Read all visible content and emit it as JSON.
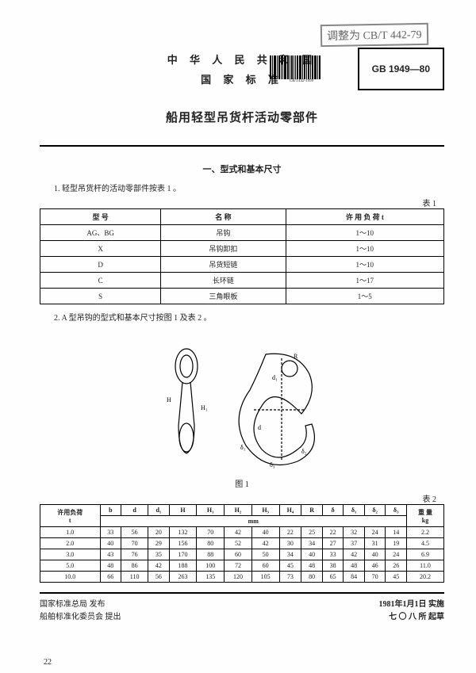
{
  "stamp": "调整为 CB/T 442-79",
  "header": {
    "country": "中 华 人 民 共 和 国",
    "std_label": "国 家 标 准",
    "barcode_sub": "CB/T442-1999",
    "gb_code": "GB 1949—80",
    "title": "船用轻型吊货杆活动零部件"
  },
  "section1": {
    "heading": "一、型式和基本尺寸",
    "item1": "1. 轻型吊货杆的活动零部件按表 1 。",
    "table_label": "表 1",
    "table1": {
      "headers": [
        "型    号",
        "名          称",
        "许 用 负 荷   t"
      ],
      "rows": [
        [
          "AG、BG",
          "吊钩",
          "1～10"
        ],
        [
          "X",
          "吊钩卸扣",
          "1～10"
        ],
        [
          "D",
          "吊货短链",
          "1～10"
        ],
        [
          "C",
          "长环链",
          "1～17"
        ],
        [
          "S",
          "三角眼板",
          "1～5"
        ]
      ]
    },
    "item2": "2. A 型吊钩的型式和基本尺寸按图 1 及表 2 。",
    "figure_caption": "图 1",
    "table2_label": "表 2",
    "table2": {
      "col_headers": [
        "许用负荷\nt",
        "b",
        "d",
        "d₁",
        "H",
        "H₁",
        "H₂",
        "H₃",
        "H₄",
        "R",
        "δ",
        "δ₁",
        "δ₂",
        "δ₃",
        "重 量\nkg"
      ],
      "unit_row": "mm",
      "rows": [
        [
          "1.0",
          "33",
          "56",
          "20",
          "132",
          "70",
          "42",
          "40",
          "22",
          "25",
          "22",
          "32",
          "24",
          "14",
          "2.2"
        ],
        [
          "2.0",
          "40",
          "70",
          "29",
          "156",
          "80",
          "52",
          "42",
          "30",
          "34",
          "27",
          "37",
          "31",
          "19",
          "4.5"
        ],
        [
          "3.0",
          "43",
          "76",
          "35",
          "170",
          "88",
          "60",
          "50",
          "34",
          "40",
          "33",
          "42",
          "40",
          "24",
          "6.9"
        ],
        [
          "5.0",
          "48",
          "86",
          "42",
          "188",
          "100",
          "72",
          "60",
          "45",
          "48",
          "38",
          "48",
          "46",
          "26",
          "11.0"
        ],
        [
          "10.0",
          "66",
          "110",
          "56",
          "263",
          "135",
          "120",
          "105",
          "73",
          "80",
          "65",
          "84",
          "70",
          "45",
          "20.2"
        ]
      ]
    }
  },
  "footer": {
    "issuer": "国家标准总局  发布",
    "proposer": "船舶标准化委员会  提出",
    "date": "1981年1月1日  实施",
    "drafter": "七  〇  八  所  起草"
  },
  "page_num": "22"
}
